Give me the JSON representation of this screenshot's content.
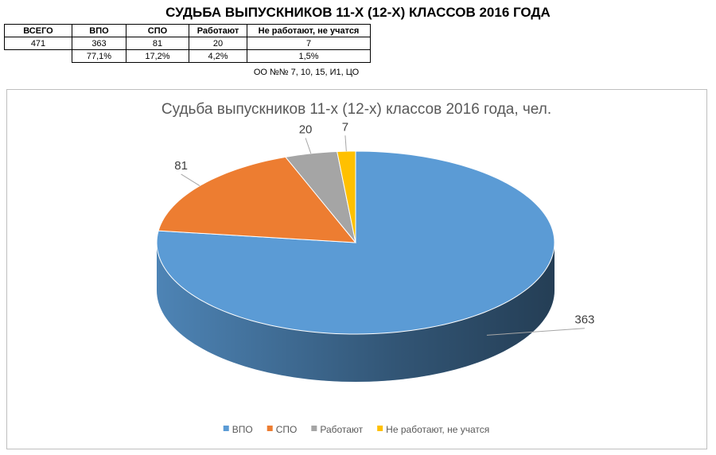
{
  "title": "СУДЬБА ВЫПУСКНИКОВ 11-Х (12-Х) КЛАССОВ 2016 ГОДА",
  "table": {
    "header": [
      "ВСЕГО",
      "ВПО",
      "СПО",
      "Работают",
      "Не работают, не учатся"
    ],
    "counts": [
      471,
      363,
      81,
      20,
      7
    ],
    "percents": [
      "77,1%",
      "17,2%",
      "4,2%",
      "1,5%"
    ]
  },
  "note": "ОО №№ 7, 10, 15, И1, ЦО",
  "chart_data": {
    "type": "pie",
    "title": "Судьба выпускников 11-х (12-х) классов 2016 года, чел.",
    "categories": [
      "ВПО",
      "СПО",
      "Работают",
      "Не работают, не учатся"
    ],
    "values": [
      363,
      81,
      20,
      7
    ],
    "colors": [
      "#5b9bd5",
      "#ed7d31",
      "#a5a5a5",
      "#ffc000"
    ],
    "legend": "bottom"
  }
}
